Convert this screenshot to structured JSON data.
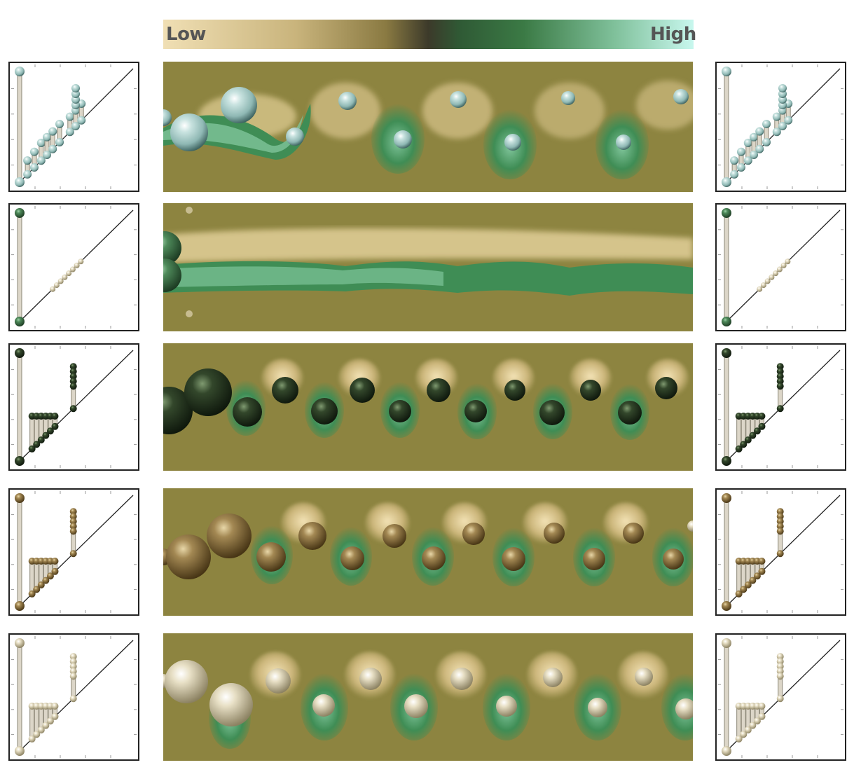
{
  "colorbar": {
    "low_label": "Low",
    "high_label": "High",
    "stops": [
      "#f0dfb4",
      "#c9b47c",
      "#8a7a42",
      "#3c3a2a",
      "#2f5a35",
      "#3b7a45",
      "#7fc09a",
      "#c8f7ee"
    ]
  },
  "colors": {
    "background_field": "#8d8440",
    "vortex_high": "#3c8a50",
    "vortex_low": "#e2cf98"
  },
  "rows": [
    {
      "id": "row-1",
      "sphere_color": "#a9cfcc",
      "sphere_dark": "#2f5350",
      "pattern": "mixed"
    },
    {
      "id": "row-2",
      "sphere_color": "#4c8558",
      "sphere_dark": "#1b3a22",
      "pattern": "steady"
    },
    {
      "id": "row-3",
      "sphere_color": "#364a2e",
      "sphere_dark": "#101a0e",
      "pattern": "shedding"
    },
    {
      "id": "row-4",
      "sphere_color": "#a68a52",
      "sphere_dark": "#4a3818",
      "pattern": "shedding"
    },
    {
      "id": "row-5",
      "sphere_color": "#e5dcc0",
      "sphere_dark": "#7a7050",
      "pattern": "shedding"
    }
  ]
}
